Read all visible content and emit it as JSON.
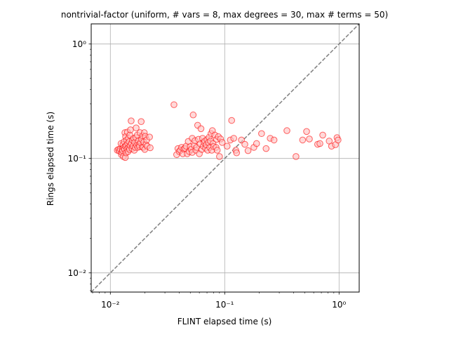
{
  "chart_data": {
    "type": "scatter",
    "title": "nontrivial-factor (uniform, # vars = 8, max degrees = 30, max # terms = 50)",
    "xlabel": "FLINT elapsed time (s)",
    "ylabel": "Rings elapsed time (s)",
    "xscale": "log",
    "yscale": "log",
    "xlim": [
      0.0068,
      1.5
    ],
    "ylim": [
      0.0068,
      1.5
    ],
    "xticks": [
      {
        "value": 0.01,
        "label": "10⁻²"
      },
      {
        "value": 0.1,
        "label": "10⁻¹"
      },
      {
        "value": 1,
        "label": "10⁰"
      }
    ],
    "yticks": [
      {
        "value": 0.01,
        "label": "10⁻²"
      },
      {
        "value": 0.1,
        "label": "10⁻¹"
      },
      {
        "value": 1,
        "label": "10⁰"
      }
    ],
    "grid": true,
    "reference_line": {
      "style": "dashed",
      "color": "#808080",
      "from": [
        0.0068,
        0.0068
      ],
      "to": [
        1.5,
        1.5
      ]
    },
    "marker": {
      "face": "#ffc0c0",
      "edge": "#ff0000",
      "alpha": 0.6
    },
    "points": [
      [
        0.0115,
        0.118
      ],
      [
        0.0118,
        0.12
      ],
      [
        0.012,
        0.116
      ],
      [
        0.0122,
        0.121
      ],
      [
        0.0124,
        0.135
      ],
      [
        0.0125,
        0.108
      ],
      [
        0.0126,
        0.113
      ],
      [
        0.0127,
        0.121
      ],
      [
        0.0128,
        0.117
      ],
      [
        0.0129,
        0.132
      ],
      [
        0.013,
        0.104
      ],
      [
        0.0131,
        0.124
      ],
      [
        0.0132,
        0.14
      ],
      [
        0.0133,
        0.12
      ],
      [
        0.0134,
        0.168
      ],
      [
        0.0135,
        0.128
      ],
      [
        0.0135,
        0.102
      ],
      [
        0.0136,
        0.155
      ],
      [
        0.0137,
        0.112
      ],
      [
        0.0138,
        0.13
      ],
      [
        0.0139,
        0.145
      ],
      [
        0.014,
        0.121
      ],
      [
        0.0141,
        0.17
      ],
      [
        0.0142,
        0.135
      ],
      [
        0.0143,
        0.115
      ],
      [
        0.0144,
        0.15
      ],
      [
        0.0145,
        0.125
      ],
      [
        0.0146,
        0.14
      ],
      [
        0.0147,
        0.12
      ],
      [
        0.0148,
        0.16
      ],
      [
        0.0149,
        0.13
      ],
      [
        0.015,
        0.178
      ],
      [
        0.0152,
        0.213
      ],
      [
        0.0153,
        0.135
      ],
      [
        0.0155,
        0.122
      ],
      [
        0.0156,
        0.145
      ],
      [
        0.0158,
        0.128
      ],
      [
        0.016,
        0.15
      ],
      [
        0.0162,
        0.118
      ],
      [
        0.0163,
        0.138
      ],
      [
        0.0165,
        0.125
      ],
      [
        0.0167,
        0.152
      ],
      [
        0.0168,
        0.185
      ],
      [
        0.017,
        0.13
      ],
      [
        0.0172,
        0.16
      ],
      [
        0.0174,
        0.125
      ],
      [
        0.0176,
        0.142
      ],
      [
        0.0178,
        0.132
      ],
      [
        0.018,
        0.127
      ],
      [
        0.0182,
        0.168
      ],
      [
        0.0184,
        0.137
      ],
      [
        0.0186,
        0.21
      ],
      [
        0.0188,
        0.147
      ],
      [
        0.019,
        0.126
      ],
      [
        0.0192,
        0.158
      ],
      [
        0.0194,
        0.125
      ],
      [
        0.0196,
        0.139
      ],
      [
        0.0198,
        0.168
      ],
      [
        0.02,
        0.12
      ],
      [
        0.0202,
        0.156
      ],
      [
        0.0205,
        0.132
      ],
      [
        0.0208,
        0.145
      ],
      [
        0.021,
        0.128
      ],
      [
        0.022,
        0.154
      ],
      [
        0.0223,
        0.124
      ],
      [
        0.036,
        0.295
      ],
      [
        0.038,
        0.108
      ],
      [
        0.039,
        0.122
      ],
      [
        0.04,
        0.115
      ],
      [
        0.041,
        0.118
      ],
      [
        0.042,
        0.125
      ],
      [
        0.043,
        0.11
      ],
      [
        0.044,
        0.121
      ],
      [
        0.045,
        0.123
      ],
      [
        0.046,
        0.128
      ],
      [
        0.047,
        0.11
      ],
      [
        0.048,
        0.141
      ],
      [
        0.049,
        0.115
      ],
      [
        0.05,
        0.127
      ],
      [
        0.051,
        0.12
      ],
      [
        0.052,
        0.15
      ],
      [
        0.052,
        0.113
      ],
      [
        0.053,
        0.24
      ],
      [
        0.054,
        0.13
      ],
      [
        0.055,
        0.143
      ],
      [
        0.056,
        0.118
      ],
      [
        0.057,
        0.125
      ],
      [
        0.058,
        0.195
      ],
      [
        0.059,
        0.147
      ],
      [
        0.06,
        0.11
      ],
      [
        0.061,
        0.134
      ],
      [
        0.062,
        0.182
      ],
      [
        0.063,
        0.12
      ],
      [
        0.064,
        0.15
      ],
      [
        0.065,
        0.128
      ],
      [
        0.066,
        0.138
      ],
      [
        0.067,
        0.142
      ],
      [
        0.068,
        0.123
      ],
      [
        0.069,
        0.132
      ],
      [
        0.07,
        0.146
      ],
      [
        0.071,
        0.118
      ],
      [
        0.072,
        0.138
      ],
      [
        0.073,
        0.153
      ],
      [
        0.074,
        0.125
      ],
      [
        0.075,
        0.142
      ],
      [
        0.076,
        0.165
      ],
      [
        0.077,
        0.118
      ],
      [
        0.078,
        0.175
      ],
      [
        0.079,
        0.135
      ],
      [
        0.08,
        0.127
      ],
      [
        0.082,
        0.16
      ],
      [
        0.084,
        0.125
      ],
      [
        0.085,
        0.147
      ],
      [
        0.086,
        0.118
      ],
      [
        0.088,
        0.155
      ],
      [
        0.09,
        0.104
      ],
      [
        0.092,
        0.148
      ],
      [
        0.095,
        0.138
      ],
      [
        0.105,
        0.128
      ],
      [
        0.112,
        0.145
      ],
      [
        0.115,
        0.215
      ],
      [
        0.12,
        0.15
      ],
      [
        0.125,
        0.118
      ],
      [
        0.127,
        0.112
      ],
      [
        0.14,
        0.145
      ],
      [
        0.15,
        0.133
      ],
      [
        0.16,
        0.117
      ],
      [
        0.18,
        0.125
      ],
      [
        0.19,
        0.135
      ],
      [
        0.21,
        0.165
      ],
      [
        0.23,
        0.122
      ],
      [
        0.25,
        0.15
      ],
      [
        0.27,
        0.145
      ],
      [
        0.35,
        0.175
      ],
      [
        0.42,
        0.104
      ],
      [
        0.48,
        0.145
      ],
      [
        0.52,
        0.172
      ],
      [
        0.55,
        0.148
      ],
      [
        0.65,
        0.133
      ],
      [
        0.68,
        0.135
      ],
      [
        0.72,
        0.16
      ],
      [
        0.82,
        0.142
      ],
      [
        0.86,
        0.128
      ],
      [
        0.93,
        0.132
      ],
      [
        0.96,
        0.152
      ],
      [
        0.98,
        0.145
      ]
    ]
  }
}
